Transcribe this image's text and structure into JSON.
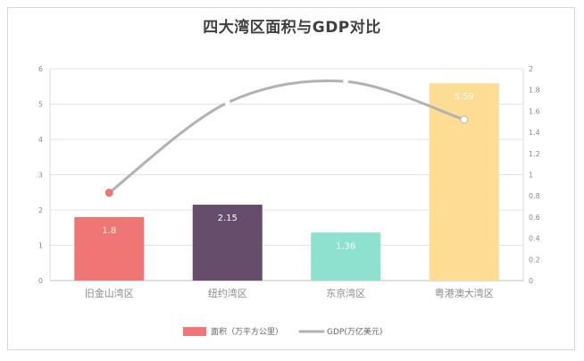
{
  "chart_data": {
    "type": "bar",
    "title": "四大湾区面积与GDP对比",
    "categories": [
      "旧金山湾区",
      "纽约湾区",
      "东京湾区",
      "粤港澳大湾区"
    ],
    "series": [
      {
        "name": "面积（万平方公里）",
        "type": "bar",
        "axis": "left",
        "values": [
          1.8,
          2.15,
          1.36,
          5.59
        ],
        "labels": [
          "1.8",
          "2.15",
          "1.36",
          "5.59"
        ],
        "colors": [
          "#f07575",
          "#654d6b",
          "#8ee0cf",
          "#fddd94"
        ]
      },
      {
        "name": "GDP(万亿美元)",
        "type": "line",
        "axis": "right",
        "values": [
          0.83,
          1.68,
          1.88,
          1.52
        ],
        "color": "#b0b2b4",
        "marker_colors": [
          "#f07575",
          "#ffffff",
          "#ffffff",
          "#ffffff"
        ]
      }
    ],
    "ylim_left": [
      0,
      6
    ],
    "yticks_left": [
      "0",
      "1",
      "2",
      "3",
      "4",
      "5",
      "6"
    ],
    "ylim_right": [
      0,
      2
    ],
    "yticks_right": [
      "0",
      "0.2",
      "0.4",
      "0.6",
      "0.8",
      "1",
      "1.2",
      "1.4",
      "1.6",
      "1.8",
      "2"
    ],
    "grid": true,
    "legend_position": "bottom"
  }
}
